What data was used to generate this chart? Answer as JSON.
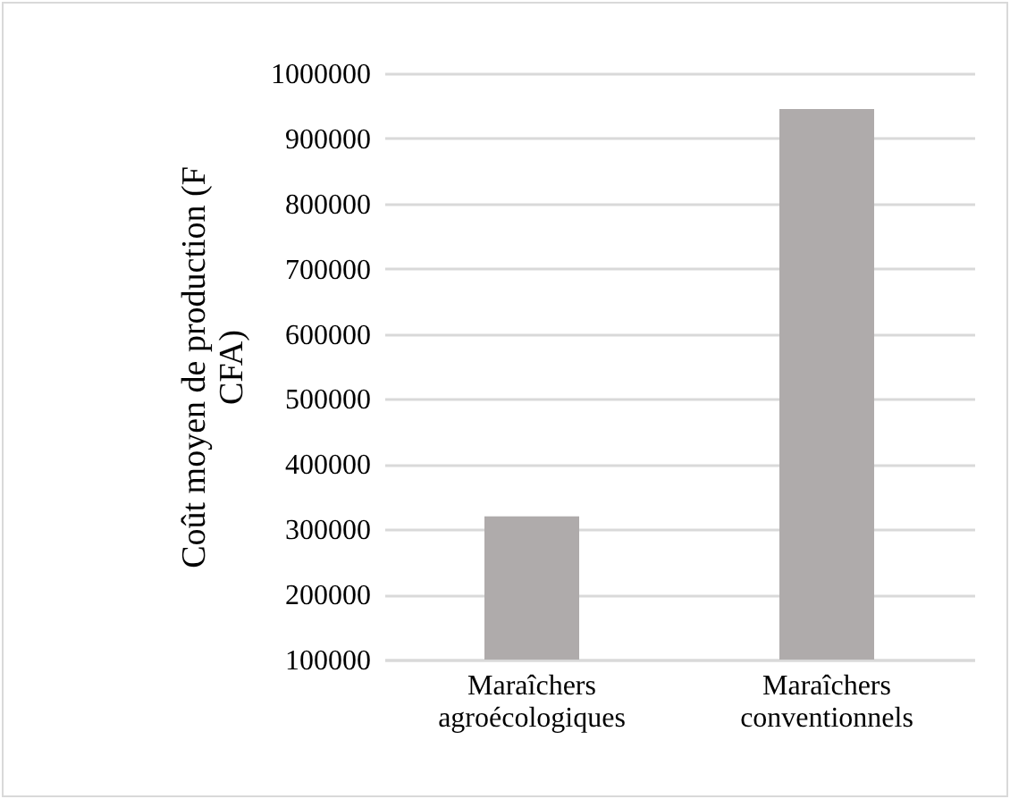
{
  "chart_data": {
    "type": "bar",
    "ylabel": "Coût moyen de production (F CFA)",
    "categories": [
      "Maraîchers agroécologiques",
      "Maraîchers conventionnels"
    ],
    "values": [
      320000,
      945000
    ],
    "color": "#afabab",
    "ylim": [
      100000,
      1000000
    ],
    "yticks": [
      100000,
      200000,
      300000,
      400000,
      500000,
      600000,
      700000,
      800000,
      900000,
      1000000
    ],
    "grid": "y"
  }
}
